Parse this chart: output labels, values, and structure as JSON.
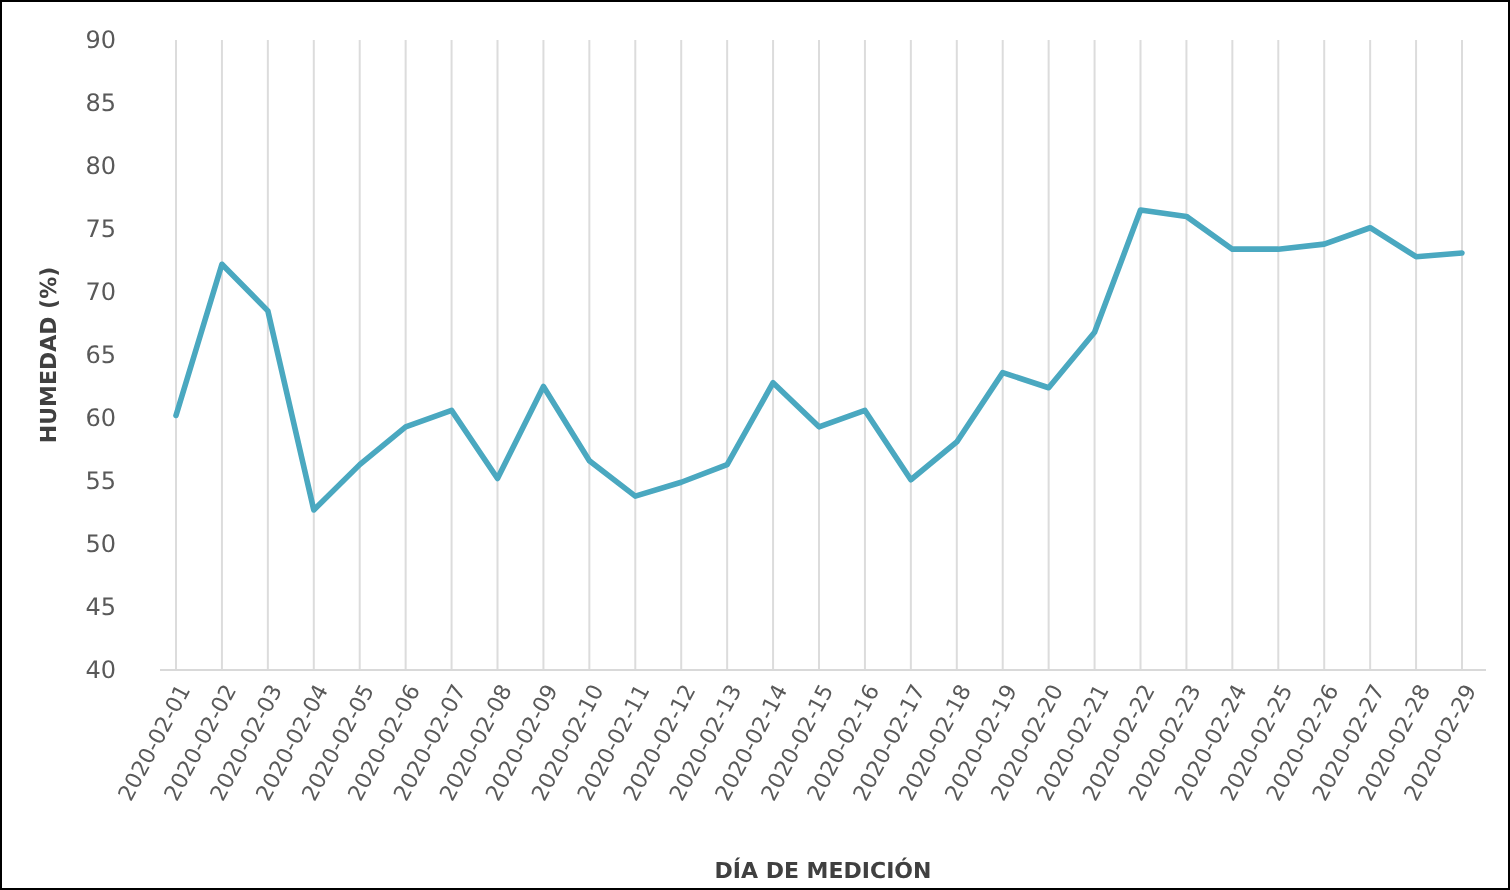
{
  "chart_data": {
    "type": "line",
    "xlabel": "DÍA DE MEDICIÓN",
    "ylabel": "HUMEDAD (%)",
    "categories": [
      "2020-02-01",
      "2020-02-02",
      "2020-02-03",
      "2020-02-04",
      "2020-02-05",
      "2020-02-06",
      "2020-02-07",
      "2020-02-08",
      "2020-02-09",
      "2020-02-10",
      "2020-02-11",
      "2020-02-12",
      "2020-02-13",
      "2020-02-14",
      "2020-02-15",
      "2020-02-16",
      "2020-02-17",
      "2020-02-18",
      "2020-02-19",
      "2020-02-20",
      "2020-02-21",
      "2020-02-22",
      "2020-02-23",
      "2020-02-24",
      "2020-02-25",
      "2020-02-26",
      "2020-02-27",
      "2020-02-28",
      "2020-02-29"
    ],
    "series": [
      {
        "color": "#4aa8c0",
        "values": [
          60.2,
          72.2,
          68.5,
          52.7,
          56.3,
          59.3,
          60.6,
          55.2,
          62.5,
          56.6,
          53.8,
          54.9,
          56.3,
          62.8,
          59.3,
          60.6,
          55.1,
          58.1,
          63.6,
          62.4,
          66.8,
          76.5,
          76.0,
          73.4,
          73.4,
          73.8,
          75.1,
          72.8,
          73.1
        ]
      }
    ],
    "ylim": [
      40,
      90
    ],
    "yticks": [
      40,
      45,
      50,
      55,
      60,
      65,
      70,
      75,
      80,
      85,
      90
    ],
    "grid": "x",
    "marker": "none",
    "line_style": "solid"
  }
}
